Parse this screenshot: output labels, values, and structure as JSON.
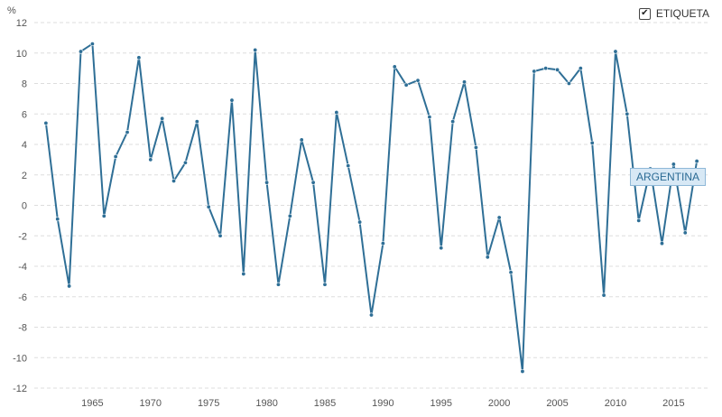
{
  "legend": {
    "label": "ETIQUETA",
    "checkbox_glyph": "✔",
    "checked": true
  },
  "series_tag": "ARGENTINA",
  "colors": {
    "line": "#2f6f96",
    "grid": "#dddddd"
  },
  "chart_data": {
    "type": "line",
    "ylabel": "%",
    "xlabel": "",
    "ylim": [
      -12,
      12
    ],
    "xlim": [
      1960,
      2018
    ],
    "x_ticks": [
      1965,
      1970,
      1975,
      1980,
      1985,
      1990,
      1995,
      2000,
      2005,
      2010,
      2015
    ],
    "y_ticks": [
      12,
      10,
      8,
      6,
      4,
      2,
      0,
      -2,
      -4,
      -6,
      -8,
      -10,
      -12
    ],
    "grid": true,
    "legend_position": "top-right",
    "series": [
      {
        "name": "ARGENTINA",
        "x": [
          1961,
          1962,
          1963,
          1964,
          1965,
          1966,
          1967,
          1968,
          1969,
          1970,
          1971,
          1972,
          1973,
          1974,
          1975,
          1976,
          1977,
          1978,
          1979,
          1980,
          1981,
          1982,
          1983,
          1984,
          1985,
          1986,
          1987,
          1988,
          1989,
          1990,
          1991,
          1992,
          1993,
          1994,
          1995,
          1996,
          1997,
          1998,
          1999,
          2000,
          2001,
          2002,
          2003,
          2004,
          2005,
          2006,
          2007,
          2008,
          2009,
          2010,
          2011,
          2012,
          2013,
          2014,
          2015,
          2016,
          2017
        ],
        "values": [
          5.4,
          -0.9,
          -5.3,
          10.1,
          10.6,
          -0.7,
          3.2,
          4.8,
          9.7,
          3.0,
          5.7,
          1.6,
          2.8,
          5.5,
          -0.1,
          -2.0,
          6.9,
          -4.5,
          10.2,
          1.5,
          -5.2,
          -0.7,
          4.3,
          1.5,
          -5.2,
          6.1,
          2.6,
          -1.1,
          -7.2,
          -2.5,
          9.1,
          7.9,
          8.2,
          5.8,
          -2.8,
          5.5,
          8.1,
          3.8,
          -3.4,
          -0.8,
          -4.4,
          -10.9,
          8.8,
          9.0,
          8.9,
          8.0,
          9.0,
          4.1,
          -5.9,
          10.1,
          6.0,
          -1.0,
          2.4,
          -2.5,
          2.7,
          -1.8,
          2.9
        ]
      }
    ]
  }
}
